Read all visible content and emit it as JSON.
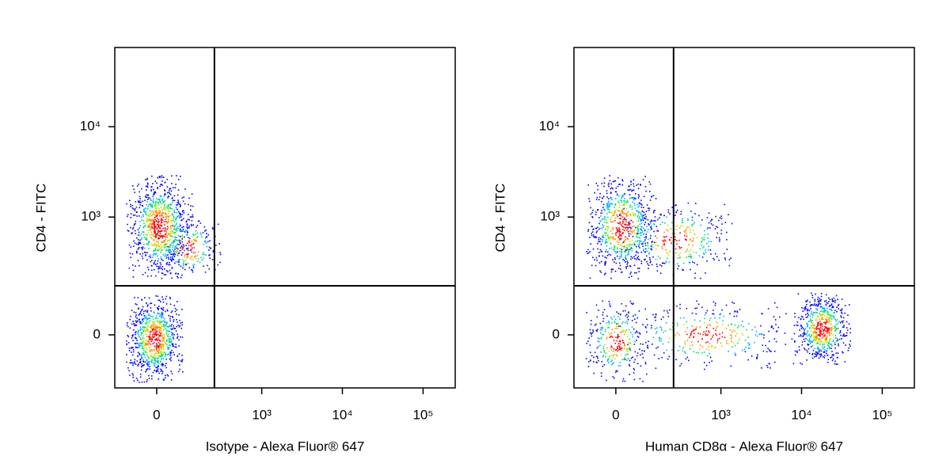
{
  "chart_data": [
    {
      "type": "density",
      "x_label": "Isotype - Alexa Fluor® 647",
      "y_label": "CD4 - FITC",
      "xscale": "logicle",
      "yscale": "logicle",
      "xlim": [
        -150,
        250000
      ],
      "ylim": [
        -180,
        75000
      ],
      "xticks": [
        0,
        {
          "value": 1000,
          "label": "10³"
        },
        {
          "value": 10000,
          "label": "10⁴"
        },
        {
          "value": 100000,
          "label": "10⁵"
        }
      ],
      "yticks": [
        0,
        {
          "value": 1000,
          "label": "10³"
        },
        {
          "value": 10000,
          "label": "10⁴"
        }
      ],
      "gates": {
        "x": 250,
        "y": 160
      },
      "populations": [
        {
          "x": [
            -100,
            120
          ],
          "y": [
            200,
            3000
          ],
          "count": 900
        },
        {
          "x": [
            0,
            300
          ],
          "y": [
            200,
            1000
          ],
          "count": 200
        },
        {
          "x": [
            -100,
            80
          ],
          "y": [
            -150,
            120
          ],
          "count": 800
        }
      ]
    },
    {
      "type": "density",
      "x_label": "Human CD8α - Alexa Fluor® 647",
      "y_label": "CD4 - FITC",
      "xscale": "logicle",
      "yscale": "logicle",
      "xlim": [
        -150,
        250000
      ],
      "ylim": [
        -180,
        75000
      ],
      "xticks": [
        0,
        {
          "value": 1000,
          "label": "10³"
        },
        {
          "value": 10000,
          "label": "10⁴"
        },
        {
          "value": 100000,
          "label": "10⁵"
        }
      ],
      "yticks": [
        0,
        {
          "value": 1000,
          "label": "10³"
        },
        {
          "value": 10000,
          "label": "10⁴"
        }
      ],
      "gates": {
        "x": 250,
        "y": 160
      },
      "populations": [
        {
          "x": [
            -100,
            150
          ],
          "y": [
            200,
            3000
          ],
          "count": 700
        },
        {
          "x": [
            0,
            1500
          ],
          "y": [
            200,
            1500
          ],
          "count": 350
        },
        {
          "x": [
            8000,
            40000
          ],
          "y": [
            -80,
            130
          ],
          "count": 600
        },
        {
          "x": [
            0,
            8000
          ],
          "y": [
            -100,
            100
          ],
          "count": 350
        },
        {
          "x": [
            -100,
            100
          ],
          "y": [
            -150,
            100
          ],
          "count": 300
        }
      ]
    }
  ]
}
